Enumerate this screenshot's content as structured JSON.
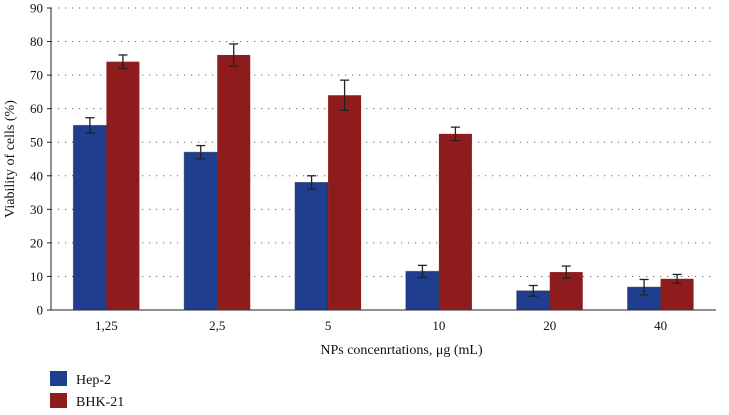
{
  "chart_data": {
    "type": "bar",
    "title": "",
    "xlabel": "NPs concenrtations, μg (mL)",
    "ylabel": "Viability of cells (%)",
    "ylim": [
      0,
      90
    ],
    "yticks": [
      0,
      10,
      20,
      30,
      40,
      50,
      60,
      70,
      80,
      90
    ],
    "categories": [
      "1,25",
      "2,5",
      "5",
      "10",
      "20",
      "40"
    ],
    "series": [
      {
        "name": "Hep-2",
        "color": "#1f3e8e",
        "values": [
          55,
          47,
          38,
          11.5,
          5.7,
          6.8
        ],
        "errors": [
          2.3,
          2.0,
          2.0,
          1.8,
          1.6,
          2.3
        ]
      },
      {
        "name": "BHK-21",
        "color": "#8e1c1c",
        "values": [
          74,
          76,
          64,
          52.5,
          11.3,
          9.3
        ],
        "errors": [
          2.0,
          3.3,
          4.5,
          2.0,
          1.8,
          1.3
        ]
      }
    ],
    "grid": true,
    "legend": "bottom-left"
  }
}
